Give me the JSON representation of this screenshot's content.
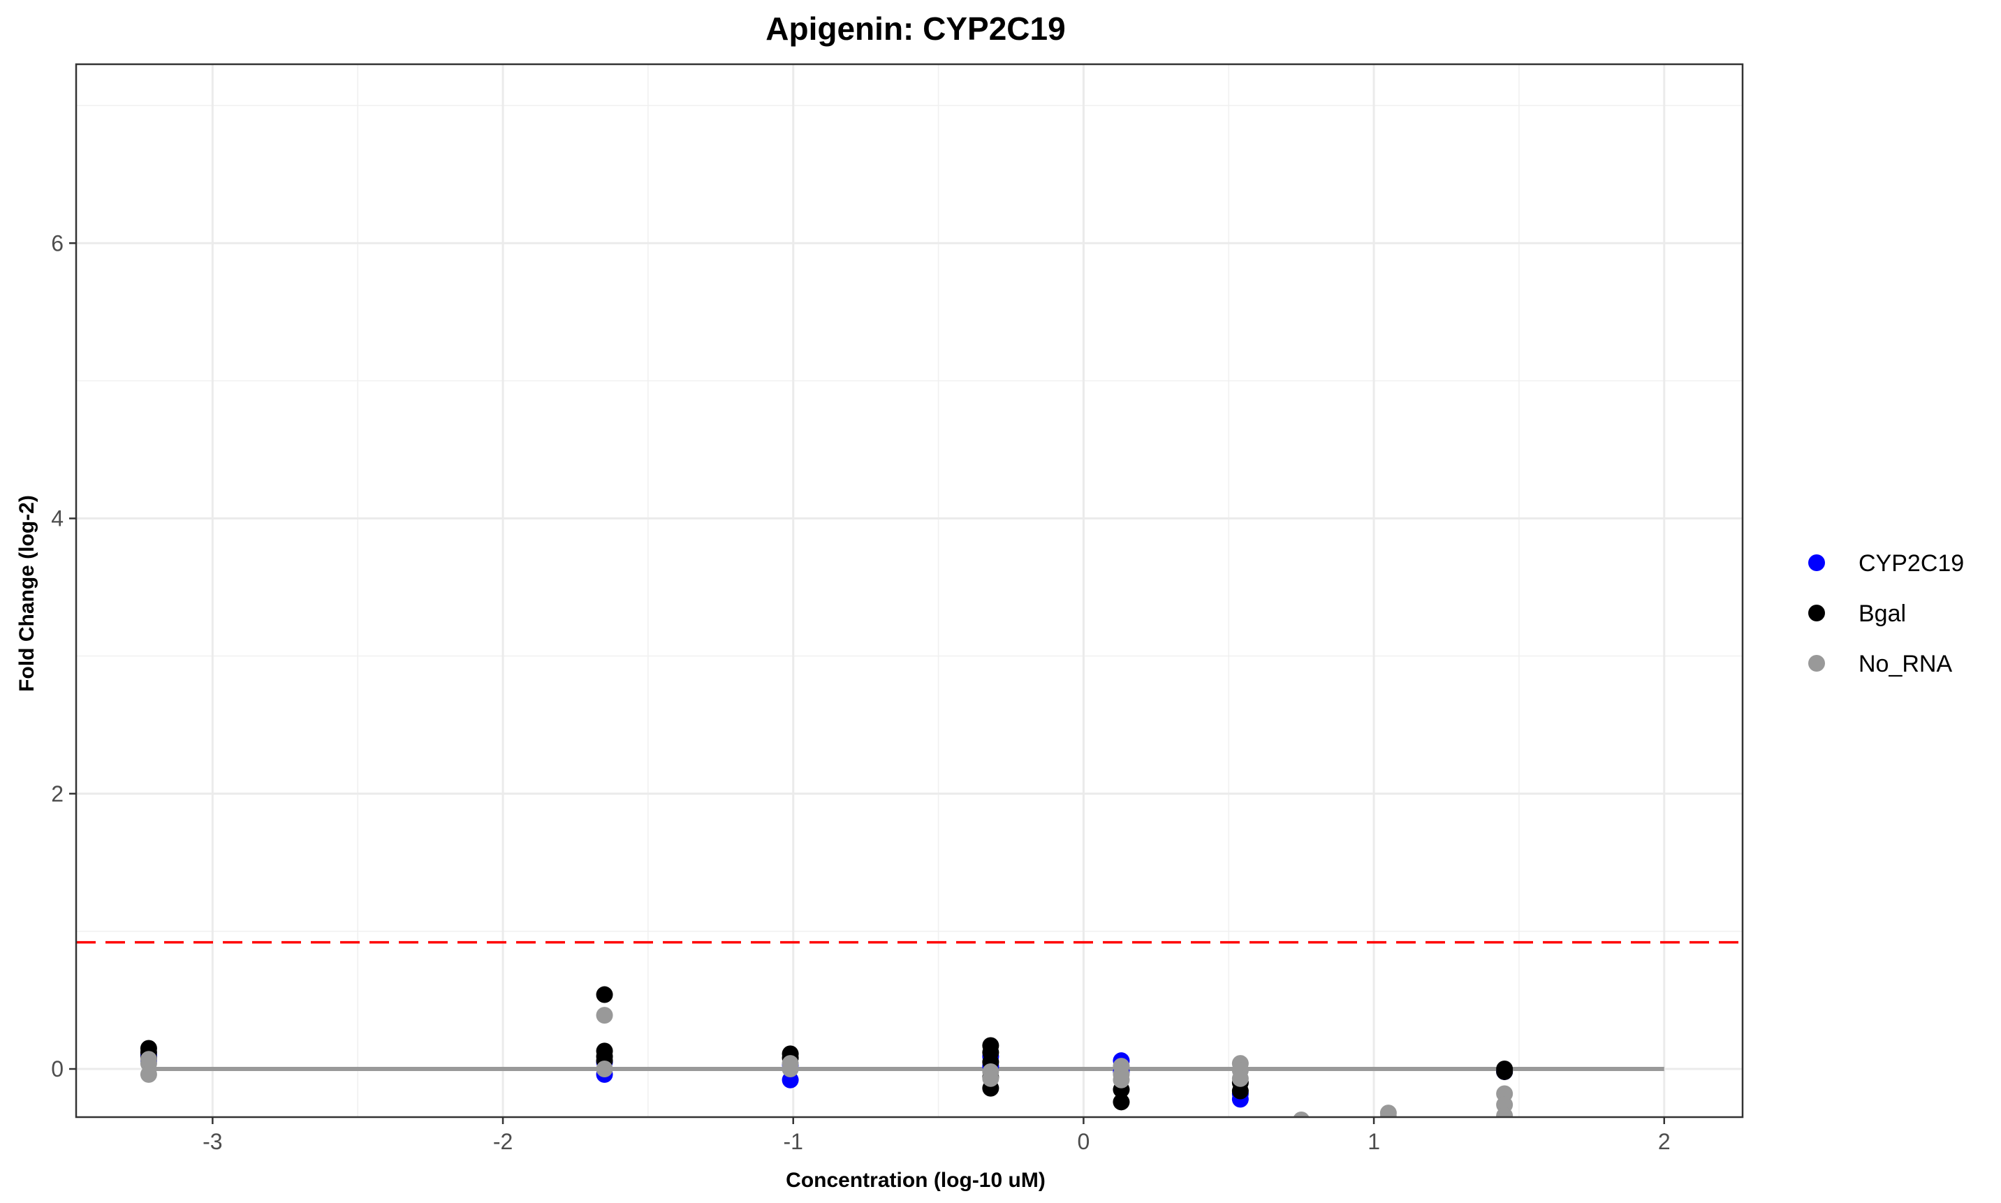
{
  "chart_data": {
    "type": "scatter",
    "title": "Apigenin: CYP2C19",
    "xlabel": "Concentration (log-10 uM)",
    "ylabel": "Fold Change (log-2)",
    "xlim": [
      -3.47,
      2.27
    ],
    "ylim": [
      -0.35,
      7.3
    ],
    "x_ticks": [
      -3,
      -2,
      -1,
      0,
      1,
      2
    ],
    "y_ticks": [
      0,
      2,
      4,
      6
    ],
    "grid": true,
    "legend_position": "right",
    "reference_lines": [
      {
        "kind": "threshold",
        "y": 0.92,
        "color": "#ff0000",
        "style": "dashed"
      },
      {
        "kind": "baseline",
        "y": 0,
        "x_from": -3.22,
        "x_to": 2.0,
        "color": "#999999",
        "style": "solid"
      }
    ],
    "series": [
      {
        "name": "CYP2C19",
        "color": "#0000ff",
        "points": [
          {
            "x": -3.22,
            "y": 0.06
          },
          {
            "x": -3.22,
            "y": 0.1
          },
          {
            "x": -1.65,
            "y": -0.04
          },
          {
            "x": -1.65,
            "y": 0.05
          },
          {
            "x": -1.01,
            "y": -0.08
          },
          {
            "x": -1.01,
            "y": 0.03
          },
          {
            "x": -0.32,
            "y": 0.09
          },
          {
            "x": -0.32,
            "y": 0.02
          },
          {
            "x": 0.13,
            "y": 0.06
          },
          {
            "x": 0.13,
            "y": -0.02
          },
          {
            "x": 0.54,
            "y": -0.22
          },
          {
            "x": 0.54,
            "y": -0.18
          },
          {
            "x": 1.45,
            "y": -0.02
          }
        ]
      },
      {
        "name": "Bgal",
        "color": "#000000",
        "points": [
          {
            "x": -3.22,
            "y": 0.15
          },
          {
            "x": -3.22,
            "y": 0.12
          },
          {
            "x": -3.22,
            "y": 0.08
          },
          {
            "x": -1.65,
            "y": 0.54
          },
          {
            "x": -1.65,
            "y": 0.13
          },
          {
            "x": -1.65,
            "y": 0.09
          },
          {
            "x": -1.65,
            "y": 0.06
          },
          {
            "x": -1.01,
            "y": 0.11
          },
          {
            "x": -1.01,
            "y": 0.08
          },
          {
            "x": -0.32,
            "y": 0.17
          },
          {
            "x": -0.32,
            "y": 0.12
          },
          {
            "x": -0.32,
            "y": 0.05
          },
          {
            "x": -0.32,
            "y": -0.06
          },
          {
            "x": -0.32,
            "y": -0.14
          },
          {
            "x": 0.13,
            "y": -0.15
          },
          {
            "x": 0.13,
            "y": -0.24
          },
          {
            "x": 0.54,
            "y": -0.1
          },
          {
            "x": 0.54,
            "y": -0.16
          },
          {
            "x": 1.45,
            "y": 0.0
          },
          {
            "x": 1.45,
            "y": -0.02
          }
        ]
      },
      {
        "name": "No_RNA",
        "color": "#999999",
        "points": [
          {
            "x": -3.22,
            "y": 0.04
          },
          {
            "x": -3.22,
            "y": -0.04
          },
          {
            "x": -3.22,
            "y": 0.07
          },
          {
            "x": -1.65,
            "y": 0.39
          },
          {
            "x": -1.65,
            "y": 0.0
          },
          {
            "x": -1.01,
            "y": 0.04
          },
          {
            "x": -1.01,
            "y": 0.0
          },
          {
            "x": -0.32,
            "y": -0.02
          },
          {
            "x": -0.32,
            "y": -0.07
          },
          {
            "x": 0.13,
            "y": 0.02
          },
          {
            "x": 0.13,
            "y": -0.04
          },
          {
            "x": 0.13,
            "y": -0.08
          },
          {
            "x": 0.54,
            "y": 0.04
          },
          {
            "x": 0.54,
            "y": -0.01
          },
          {
            "x": 0.54,
            "y": -0.07
          },
          {
            "x": 0.75,
            "y": -0.37
          },
          {
            "x": 1.05,
            "y": -0.32
          },
          {
            "x": 1.05,
            "y": -0.35
          },
          {
            "x": 1.45,
            "y": -0.18
          },
          {
            "x": 1.45,
            "y": -0.26
          },
          {
            "x": 1.45,
            "y": -0.34
          }
        ]
      }
    ]
  }
}
